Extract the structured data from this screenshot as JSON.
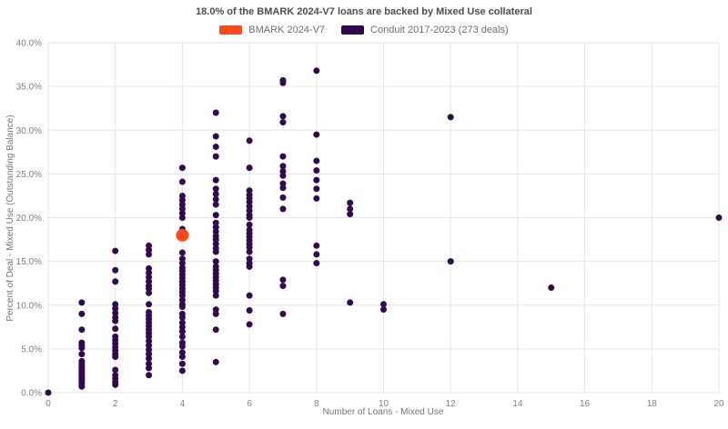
{
  "chart_data": {
    "type": "scatter",
    "title": "18.0% of the BMARK 2024-V7 loans are backed by Mixed Use collateral",
    "xlabel": "Number of Loans - Mixed Use",
    "ylabel": "Percent of Deal - Mixed Use (Outstanding Balance)",
    "xlim": [
      0,
      20
    ],
    "ylim": [
      0,
      40
    ],
    "grid": true,
    "legend_position": "top-center",
    "x_ticks": [
      {
        "value": 0,
        "label": "0"
      },
      {
        "value": 2,
        "label": "2"
      },
      {
        "value": 4,
        "label": "4"
      },
      {
        "value": 6,
        "label": "6"
      },
      {
        "value": 8,
        "label": "8"
      },
      {
        "value": 10,
        "label": "10"
      },
      {
        "value": 12,
        "label": "12"
      },
      {
        "value": 14,
        "label": "14"
      },
      {
        "value": 16,
        "label": "16"
      },
      {
        "value": 18,
        "label": "18"
      },
      {
        "value": 20,
        "label": "20"
      }
    ],
    "y_ticks": [
      {
        "value": 0,
        "label": "0.0%"
      },
      {
        "value": 5,
        "label": "5.0%"
      },
      {
        "value": 10,
        "label": "10.0%"
      },
      {
        "value": 15,
        "label": "15.0%"
      },
      {
        "value": 20,
        "label": "20.0%"
      },
      {
        "value": 25,
        "label": "25.0%"
      },
      {
        "value": 30,
        "label": "30.0%"
      },
      {
        "value": 35,
        "label": "35.0%"
      },
      {
        "value": 40,
        "label": "40.0%"
      }
    ],
    "colors": {
      "grid": "#e6e6e6",
      "tick_text": "#808080",
      "axis_text": "#757575",
      "title_text": "#4d4d4d",
      "bmark": "#fb4a1e",
      "conduit": "#31094e"
    },
    "series": [
      {
        "name": "BMARK 2024-V7",
        "color": "#fb4a1e",
        "marker_radius": 7,
        "points": [
          [
            4,
            18.0
          ]
        ]
      },
      {
        "name": "Conduit 2017-2023 (273 deals)",
        "color": "#31094e",
        "marker_radius": 3.5,
        "points": [
          [
            0,
            0.0
          ],
          [
            1,
            10.3
          ],
          [
            1,
            9.0
          ],
          [
            1,
            7.2
          ],
          [
            1,
            5.7
          ],
          [
            1,
            5.4
          ],
          [
            1,
            5.1
          ],
          [
            1,
            4.4
          ],
          [
            1,
            3.6
          ],
          [
            1,
            3.4
          ],
          [
            1,
            3.2
          ],
          [
            1,
            3.0
          ],
          [
            1,
            2.8
          ],
          [
            1,
            2.6
          ],
          [
            1,
            2.4
          ],
          [
            1,
            2.2
          ],
          [
            1,
            2.0
          ],
          [
            1,
            1.8
          ],
          [
            1,
            1.6
          ],
          [
            1,
            1.4
          ],
          [
            1,
            1.2
          ],
          [
            1,
            1.0
          ],
          [
            1,
            0.7
          ],
          [
            2,
            16.2
          ],
          [
            2,
            14.0
          ],
          [
            2,
            12.7
          ],
          [
            2,
            10.1
          ],
          [
            2,
            9.6
          ],
          [
            2,
            9.1
          ],
          [
            2,
            8.6
          ],
          [
            2,
            8.2
          ],
          [
            2,
            7.3
          ],
          [
            2,
            6.4
          ],
          [
            2,
            6.0
          ],
          [
            2,
            5.6
          ],
          [
            2,
            5.2
          ],
          [
            2,
            4.8
          ],
          [
            2,
            4.4
          ],
          [
            2,
            4.1
          ],
          [
            2,
            2.6
          ],
          [
            2,
            2.0
          ],
          [
            2,
            1.6
          ],
          [
            2,
            1.2
          ],
          [
            2,
            0.9
          ],
          [
            3,
            16.8
          ],
          [
            3,
            16.3
          ],
          [
            3,
            15.8
          ],
          [
            3,
            14.2
          ],
          [
            3,
            13.7
          ],
          [
            3,
            13.2
          ],
          [
            3,
            12.7
          ],
          [
            3,
            12.2
          ],
          [
            3,
            11.9
          ],
          [
            3,
            11.4
          ],
          [
            3,
            10.1
          ],
          [
            3,
            9.2
          ],
          [
            3,
            8.8
          ],
          [
            3,
            8.4
          ],
          [
            3,
            8.0
          ],
          [
            3,
            7.6
          ],
          [
            3,
            7.2
          ],
          [
            3,
            6.8
          ],
          [
            3,
            6.4
          ],
          [
            3,
            5.9
          ],
          [
            3,
            5.4
          ],
          [
            3,
            4.9
          ],
          [
            3,
            4.4
          ],
          [
            3,
            3.9
          ],
          [
            3,
            3.3
          ],
          [
            3,
            2.8
          ],
          [
            3,
            2.0
          ],
          [
            4,
            25.7
          ],
          [
            4,
            24.1
          ],
          [
            4,
            22.5
          ],
          [
            4,
            22.0
          ],
          [
            4,
            21.5
          ],
          [
            4,
            21.0
          ],
          [
            4,
            20.5
          ],
          [
            4,
            20.0
          ],
          [
            4,
            18.7
          ],
          [
            4,
            16.0
          ],
          [
            4,
            15.3
          ],
          [
            4,
            14.8
          ],
          [
            4,
            14.3
          ],
          [
            4,
            13.9
          ],
          [
            4,
            13.5
          ],
          [
            4,
            13.1
          ],
          [
            4,
            12.7
          ],
          [
            4,
            12.3
          ],
          [
            4,
            11.9
          ],
          [
            4,
            11.5
          ],
          [
            4,
            11.1
          ],
          [
            4,
            10.6
          ],
          [
            4,
            10.1
          ],
          [
            4,
            9.8
          ],
          [
            4,
            9.0
          ],
          [
            4,
            8.6
          ],
          [
            4,
            8.0
          ],
          [
            4,
            7.5
          ],
          [
            4,
            7.0
          ],
          [
            4,
            6.4
          ],
          [
            4,
            5.7
          ],
          [
            4,
            5.3
          ],
          [
            4,
            4.6
          ],
          [
            4,
            4.1
          ],
          [
            4,
            3.3
          ],
          [
            4,
            2.5
          ],
          [
            5,
            32.0
          ],
          [
            5,
            29.3
          ],
          [
            5,
            28.1
          ],
          [
            5,
            27.0
          ],
          [
            5,
            24.3
          ],
          [
            5,
            23.3
          ],
          [
            5,
            22.7
          ],
          [
            5,
            22.1
          ],
          [
            5,
            21.5
          ],
          [
            5,
            20.3
          ],
          [
            5,
            19.4
          ],
          [
            5,
            18.9
          ],
          [
            5,
            18.4
          ],
          [
            5,
            17.9
          ],
          [
            5,
            17.5
          ],
          [
            5,
            17.0
          ],
          [
            5,
            16.5
          ],
          [
            5,
            16.1
          ],
          [
            5,
            15.0
          ],
          [
            5,
            14.4
          ],
          [
            5,
            14.0
          ],
          [
            5,
            13.6
          ],
          [
            5,
            13.2
          ],
          [
            5,
            12.8
          ],
          [
            5,
            12.4
          ],
          [
            5,
            12.0
          ],
          [
            5,
            11.6
          ],
          [
            5,
            11.1
          ],
          [
            5,
            9.5
          ],
          [
            5,
            9.0
          ],
          [
            5,
            7.2
          ],
          [
            5,
            3.5
          ],
          [
            6,
            28.8
          ],
          [
            6,
            25.7
          ],
          [
            6,
            23.1
          ],
          [
            6,
            22.6
          ],
          [
            6,
            22.2
          ],
          [
            6,
            21.8
          ],
          [
            6,
            21.3
          ],
          [
            6,
            20.8
          ],
          [
            6,
            20.3
          ],
          [
            6,
            20.0
          ],
          [
            6,
            19.2
          ],
          [
            6,
            18.6
          ],
          [
            6,
            18.2
          ],
          [
            6,
            17.8
          ],
          [
            6,
            17.4
          ],
          [
            6,
            17.0
          ],
          [
            6,
            16.6
          ],
          [
            6,
            16.1
          ],
          [
            6,
            15.3
          ],
          [
            6,
            14.8
          ],
          [
            6,
            14.4
          ],
          [
            6,
            11.1
          ],
          [
            6,
            9.4
          ],
          [
            6,
            7.8
          ],
          [
            7,
            35.7
          ],
          [
            7,
            35.4
          ],
          [
            7,
            31.6
          ],
          [
            7,
            30.9
          ],
          [
            7,
            27.0
          ],
          [
            7,
            25.9
          ],
          [
            7,
            25.3
          ],
          [
            7,
            24.8
          ],
          [
            7,
            23.9
          ],
          [
            7,
            23.4
          ],
          [
            7,
            22.3
          ],
          [
            7,
            21.0
          ],
          [
            7,
            12.9
          ],
          [
            7,
            12.2
          ],
          [
            7,
            9.0
          ],
          [
            8,
            36.8
          ],
          [
            8,
            29.5
          ],
          [
            8,
            26.5
          ],
          [
            8,
            25.4
          ],
          [
            8,
            24.3
          ],
          [
            8,
            23.3
          ],
          [
            8,
            22.2
          ],
          [
            8,
            16.8
          ],
          [
            8,
            15.8
          ],
          [
            8,
            14.8
          ],
          [
            9,
            21.7
          ],
          [
            9,
            21.0
          ],
          [
            9,
            20.4
          ],
          [
            9,
            10.3
          ],
          [
            10,
            10.1
          ],
          [
            10,
            9.5
          ],
          [
            12,
            31.5
          ],
          [
            12,
            15.0
          ],
          [
            15,
            12.0
          ],
          [
            20,
            20.0
          ]
        ]
      }
    ]
  }
}
